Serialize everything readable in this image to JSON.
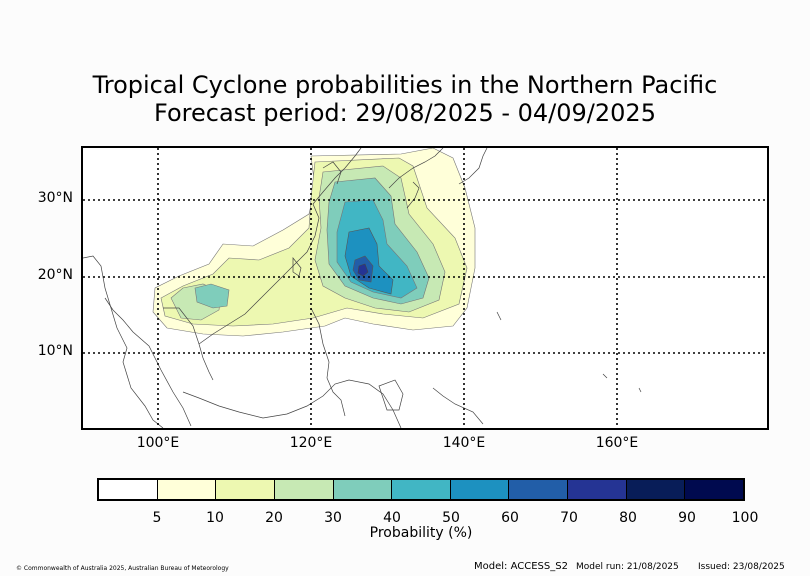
{
  "title_line1": "Tropical Cyclone probabilities in the Northern Pacific",
  "title_line2": "Forecast period: 29/08/2025 - 04/09/2025",
  "map": {
    "lat_labels": [
      "30°N",
      "20°N",
      "10°N"
    ],
    "lon_labels": [
      "100°E",
      "120°E",
      "140°E",
      "160°E"
    ]
  },
  "colorbar": {
    "label": "Probability (%)",
    "ticks": [
      "5",
      "10",
      "20",
      "30",
      "40",
      "50",
      "60",
      "70",
      "80",
      "90",
      "100"
    ],
    "colors": [
      "#ffffff",
      "#ffffd9",
      "#edf8b1",
      "#c7e9b4",
      "#7fcdbb",
      "#41b6c4",
      "#1d91c0",
      "#225ea8",
      "#253494",
      "#081d58",
      "#000a4f"
    ]
  },
  "footer": {
    "copyright": "© Commonwealth of Australia 2025, Australian Bureau of Meteorology",
    "model": "Model: ACCESS_S2",
    "model_run": "Model run: 21/08/2025",
    "issued": "Issued: 23/08/2025"
  }
}
